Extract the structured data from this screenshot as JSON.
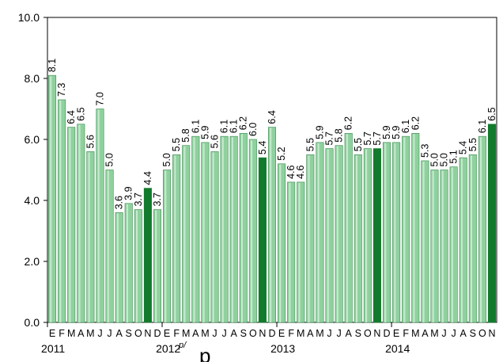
{
  "chart_data": {
    "type": "bar",
    "title": "",
    "xlabel": "",
    "ylabel": "",
    "ylim": [
      0,
      10
    ],
    "yticks": [
      "0.0",
      "2.0",
      "4.0",
      "6.0",
      "8.0",
      "10.0"
    ],
    "grid": false,
    "legend": "none",
    "month_labels": [
      "E",
      "F",
      "M",
      "A",
      "M",
      "J",
      "J",
      "A",
      "S",
      "O",
      "N",
      "D",
      "E",
      "F",
      "M",
      "A",
      "M",
      "J",
      "J",
      "A",
      "S",
      "O",
      "N",
      "D",
      "E",
      "F",
      "M",
      "A",
      "M",
      "J",
      "J",
      "A",
      "S",
      "O",
      "N",
      "D",
      "E",
      "F",
      "M",
      "A",
      "M",
      "J",
      "J",
      "A",
      "S",
      "O",
      "N"
    ],
    "years": [
      {
        "label": "2011",
        "start_index": 0
      },
      {
        "label": "2012",
        "start_index": 12
      },
      {
        "label": "2013",
        "start_index": 24
      },
      {
        "label": "2014",
        "start_index": 36
      }
    ],
    "values": [
      8.1,
      7.3,
      6.4,
      6.5,
      5.6,
      7.0,
      5.0,
      3.6,
      3.9,
      3.7,
      4.4,
      3.7,
      5.0,
      5.5,
      5.8,
      6.1,
      5.9,
      5.6,
      6.1,
      6.1,
      6.2,
      6.0,
      5.4,
      6.4,
      5.2,
      4.6,
      4.6,
      5.5,
      5.9,
      5.7,
      5.8,
      6.2,
      5.5,
      5.7,
      5.7,
      5.9,
      5.9,
      6.1,
      6.2,
      5.3,
      5.0,
      5.0,
      5.1,
      5.4,
      5.5,
      6.1,
      6.5
    ],
    "data_labels": [
      "8.1",
      "7.3",
      "6.4",
      "6.5",
      "5.6",
      "7.0",
      "5.0",
      "3.6",
      "3.9",
      "3.7",
      "4.4",
      "3.7",
      "5.0",
      "5.5",
      "5.8",
      "6.1",
      "5.9",
      "5.6",
      "6.1",
      "6.1",
      "6.2",
      "6.0",
      "5.4",
      "6.4",
      "5.2",
      "4.6",
      "4.6",
      "5.5",
      "5.9",
      "5.7",
      "5.8",
      "6.2",
      "5.5",
      "5.7",
      "5.7",
      "5.9",
      "5.9",
      "6.1",
      "6.2",
      "5.3",
      "5.0",
      "5.0",
      "5.1",
      "5.4",
      "5.5",
      "6.1",
      "6.5"
    ],
    "highlight_indices": [
      10,
      22,
      34,
      46
    ],
    "colors": {
      "bar_light": "#8fd19e",
      "bar_light_edge": "#3a8a4e",
      "bar_dark": "#127a2c",
      "axis": "#000000"
    }
  },
  "annotations": {
    "year_superscript": "p/",
    "big_letter": "p"
  }
}
